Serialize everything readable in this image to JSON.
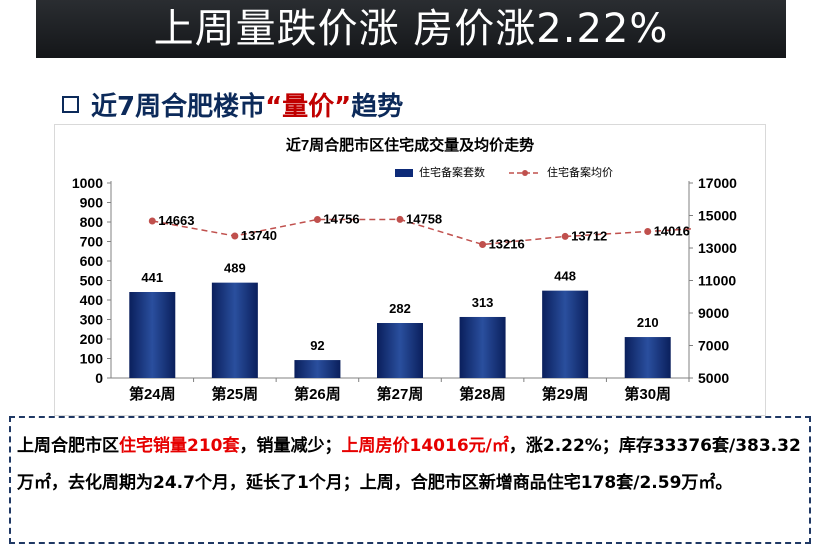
{
  "header": {
    "title": "上周量跌价涨 房价涨2.22%"
  },
  "subtitle": {
    "prefix": "近7周合肥楼市",
    "highlight": "“量价”",
    "suffix": "趋势"
  },
  "chart_data": {
    "type": "bar+line",
    "title": "近7周合肥市区住宅成交量及均价走势",
    "categories": [
      "第24周",
      "第25周",
      "第26周",
      "第27周",
      "第28周",
      "第29周",
      "第30周"
    ],
    "series": [
      {
        "name": "住宅备案套数",
        "type": "bar",
        "axis": "left",
        "color": "#0d2a78",
        "values": [
          441,
          489,
          92,
          282,
          313,
          448,
          210
        ]
      },
      {
        "name": "住宅备案均价",
        "type": "line",
        "axis": "right",
        "color": "#c0504d",
        "values": [
          14663,
          13740,
          14756,
          14758,
          13216,
          13712,
          14016
        ]
      }
    ],
    "y_left": {
      "min": 0,
      "max": 1000,
      "ticks": [
        0,
        100,
        200,
        300,
        400,
        500,
        600,
        700,
        800,
        900,
        1000
      ]
    },
    "y_right": {
      "min": 5000,
      "max": 17000,
      "ticks": [
        5000,
        7000,
        9000,
        11000,
        13000,
        15000,
        17000
      ]
    },
    "legend_position": "top-right",
    "grid": false
  },
  "summary": {
    "p1": "上周合肥市区",
    "h1": "住宅销量210套",
    "p2": "，销量减少；",
    "h2": "上周房价14016元/㎡",
    "p3": "，涨2.22%；库存33376套/383.32万㎡，去化周期为24.7个月，延长了1个月；上周，合肥市区新增商品住宅178套/2.59万㎡。"
  },
  "colors": {
    "banner_bg": "#1c1e22",
    "title_blue": "#0c2a5a",
    "highlight_red": "#e60000",
    "bar_blue": "#0d2a78",
    "line_red": "#c0504d",
    "dash_border": "#1f3864"
  }
}
